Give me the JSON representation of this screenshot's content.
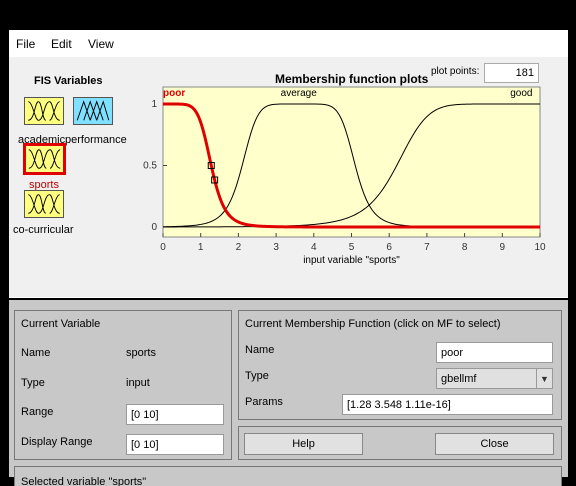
{
  "menu": {
    "file": "File",
    "edit": "Edit",
    "view": "View"
  },
  "fis": {
    "title": "FIS Variables",
    "vars": [
      {
        "label": "academic",
        "kind": "input"
      },
      {
        "label": "performance",
        "kind": "output"
      },
      {
        "label": "sports",
        "kind": "input",
        "selected": true
      },
      {
        "label": "co-curricular",
        "kind": "input"
      }
    ]
  },
  "plot": {
    "title": "Membership function plots",
    "points_label": "plot points:",
    "points_value": "181",
    "xlabel": "input variable \"sports\""
  },
  "chart_data": {
    "type": "line",
    "xlim": [
      0,
      10
    ],
    "ylim": [
      0,
      1
    ],
    "xticks": [
      "0",
      "1",
      "2",
      "3",
      "4",
      "5",
      "6",
      "7",
      "8",
      "9",
      "10"
    ],
    "yticks": [
      "0",
      "0.5",
      "1"
    ],
    "xlabel": "input variable \"sports\"",
    "colors": {
      "selected": "#e00000",
      "other": "#000000",
      "background": "#ffffcc"
    },
    "series": [
      {
        "name": "poor",
        "mf": "gbellmf",
        "params": [
          1.28,
          3.548,
          1.11e-16
        ],
        "selected": true
      },
      {
        "name": "average",
        "mf": "gbellmf",
        "params": [
          1.5,
          3.5,
          3.6
        ],
        "selected": false
      },
      {
        "name": "good",
        "mf": "gbellmf",
        "params": [
          3.0,
          3.5,
          9.2
        ],
        "selected": false
      }
    ]
  },
  "current_variable": {
    "title": "Current Variable",
    "name_label": "Name",
    "name_value": "sports",
    "type_label": "Type",
    "type_value": "input",
    "range_label": "Range",
    "range_value": "[0 10]",
    "display_range_label": "Display Range",
    "display_range_value": "[0 10]"
  },
  "current_mf": {
    "title": "Current Membership Function (click on MF to select)",
    "name_label": "Name",
    "name_value": "poor",
    "type_label": "Type",
    "type_value": "gbellmf",
    "params_label": "Params",
    "params_value": "[1.28 3.548 1.11e-16]"
  },
  "buttons": {
    "help": "Help",
    "close": "Close"
  },
  "status": "Selected variable \"sports\""
}
